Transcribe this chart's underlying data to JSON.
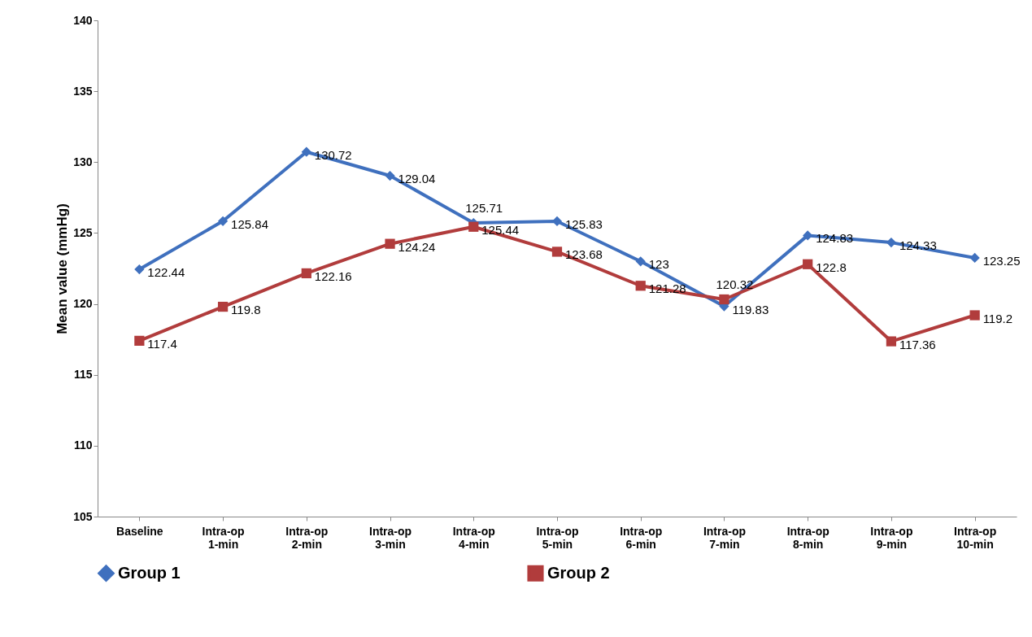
{
  "chart_data": {
    "type": "line",
    "ylabel": "Mean value (mmHg)",
    "categories": [
      "Baseline",
      "Intra-op 1-min",
      "Intra-op 2-min",
      "Intra-op 3-min",
      "Intra-op 4-min",
      "Intra-op 5-min",
      "Intra-op 6-min",
      "Intra-op 7-min",
      "Intra-op 8-min",
      "Intra-op 9-min",
      "Intra-op 10-min"
    ],
    "series": [
      {
        "name": "Group 1",
        "color": "#3f70be",
        "marker": "diamond",
        "values": [
          122.44,
          125.84,
          130.72,
          129.04,
          125.71,
          125.83,
          123,
          119.83,
          124.83,
          124.33,
          123.25
        ]
      },
      {
        "name": "Group 2",
        "color": "#b13c3c",
        "marker": "square",
        "values": [
          117.4,
          119.8,
          122.16,
          124.24,
          125.44,
          123.68,
          121.28,
          120.32,
          122.8,
          117.36,
          119.2
        ]
      }
    ],
    "ylim": [
      105,
      140
    ],
    "yticks": [
      105,
      110,
      115,
      120,
      125,
      130,
      135,
      140
    ],
    "grid": false,
    "legend": "bottom",
    "data_labels": true
  }
}
